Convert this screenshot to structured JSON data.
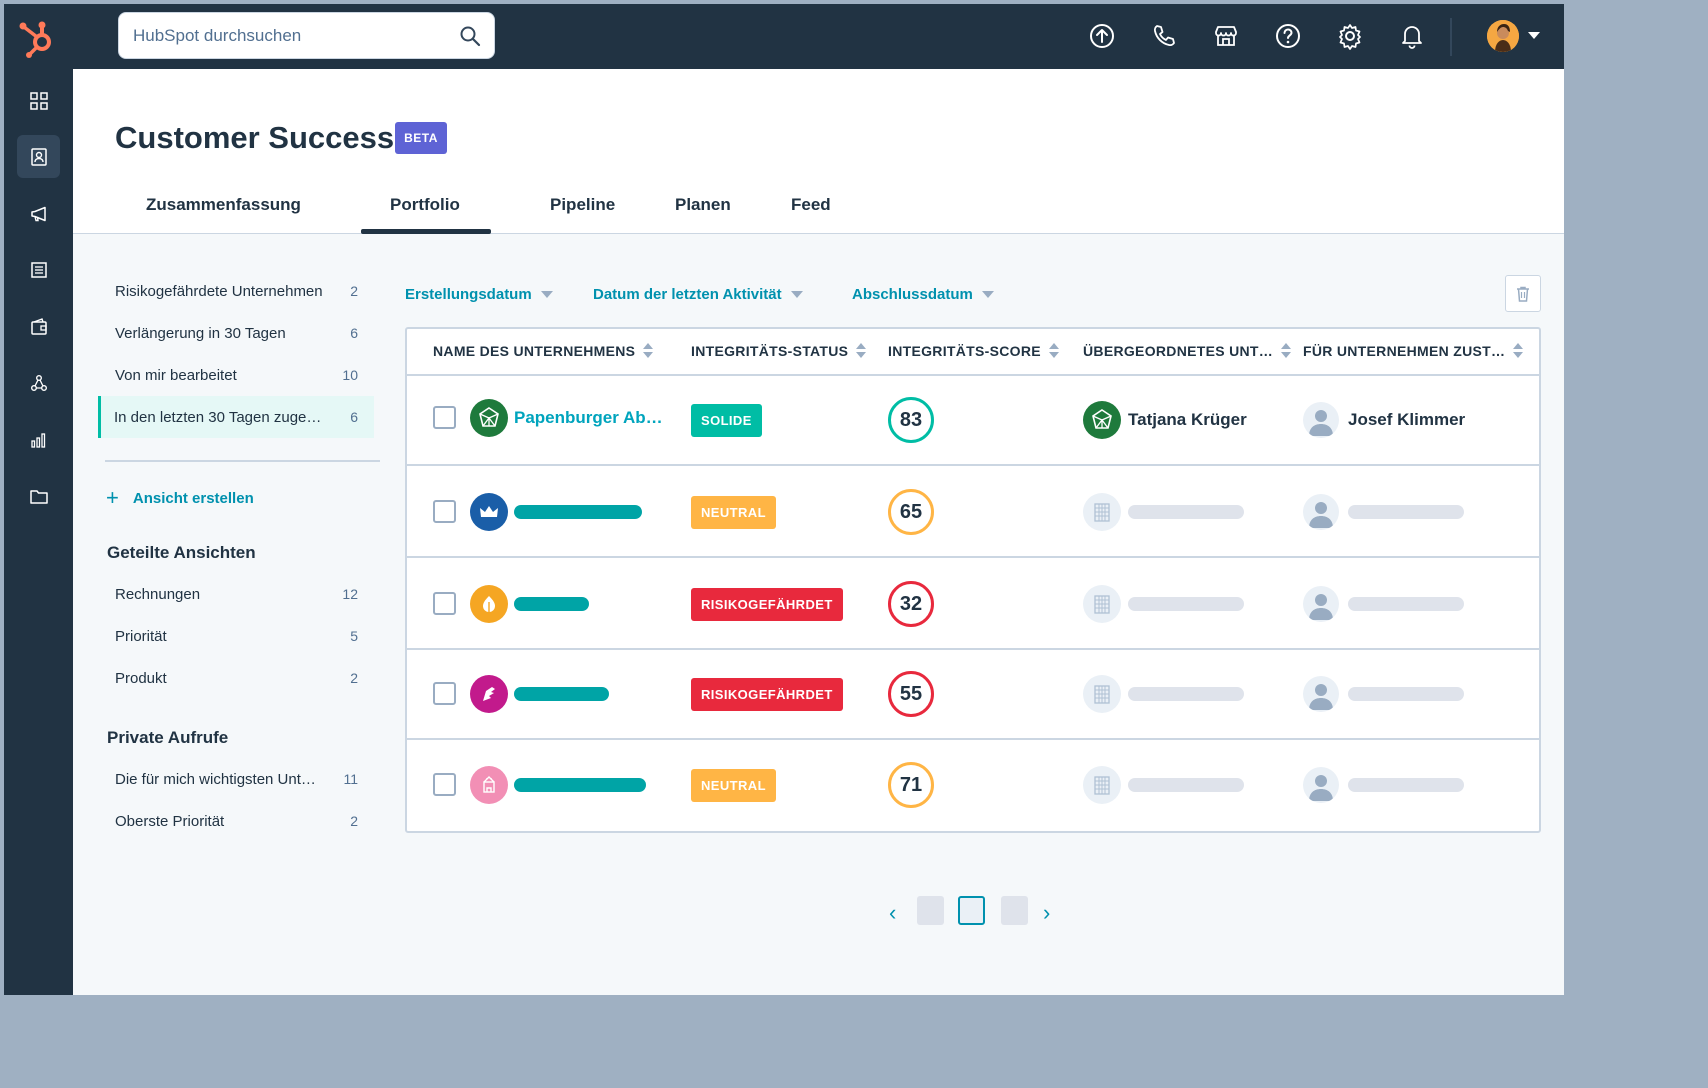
{
  "search": {
    "placeholder": "HubSpot durchsuchen"
  },
  "header": {
    "title": "Customer Success",
    "badge": "BETA"
  },
  "tabs": [
    {
      "label": "Zusammenfassung"
    },
    {
      "label": "Portfolio"
    },
    {
      "label": "Pipeline"
    },
    {
      "label": "Planen"
    },
    {
      "label": "Feed"
    }
  ],
  "active_tab": "Portfolio",
  "sidebar": {
    "views": [
      {
        "label": "Risikogefährdete Unternehmen",
        "count": "2"
      },
      {
        "label": "Verlängerung in 30 Tagen",
        "count": "6"
      },
      {
        "label": "Von mir bearbeitet",
        "count": "10"
      },
      {
        "label": "In den letzten 30 Tagen zuge…",
        "count": "6"
      }
    ],
    "create_view": "Ansicht erstellen",
    "shared_heading": "Geteilte Ansichten",
    "shared": [
      {
        "label": "Rechnungen",
        "count": "12"
      },
      {
        "label": "Priorität",
        "count": "5"
      },
      {
        "label": "Produkt",
        "count": "2"
      }
    ],
    "private_heading": "Private Aufrufe",
    "private": [
      {
        "label": "Die für mich wichtigsten Unt…",
        "count": "11"
      },
      {
        "label": "Oberste Priorität",
        "count": "2"
      }
    ]
  },
  "filters": {
    "created": "Erstellungsdatum",
    "last_activity": "Datum der letzten Aktivität",
    "close_date": "Abschlussdatum"
  },
  "table": {
    "columns": [
      "NAME DES UNTERNEHMENS",
      "INTEGRITÄTS-STATUS",
      "INTEGRITÄTS-SCORE",
      "ÜBERGEORDNETES UNT…",
      "FÜR UNTERNEHMEN ZUST…"
    ],
    "rows": [
      {
        "company": "Papenburger Ab…",
        "status": "SOLIDE",
        "score": "83",
        "parent": "Tatjana Krüger",
        "owner": "Josef Klimmer"
      },
      {
        "company": "",
        "status": "NEUTRAL",
        "score": "65",
        "parent": "",
        "owner": ""
      },
      {
        "company": "",
        "status": "RISIKOGEFÄHRDET",
        "score": "32",
        "parent": "",
        "owner": ""
      },
      {
        "company": "",
        "status": "RISIKOGEFÄHRDET",
        "score": "55",
        "parent": "",
        "owner": ""
      },
      {
        "company": "",
        "status": "NEUTRAL",
        "score": "71",
        "parent": "",
        "owner": ""
      }
    ]
  },
  "pagination": {
    "active_page": 2,
    "pages": 3
  },
  "colors": {
    "nav_bg": "#213343",
    "accent_teal": "#00bda5",
    "link": "#0091ae",
    "solid": "#00bda5",
    "neutral": "#ffb545",
    "risk": "#e8293d",
    "beta": "#5e63d5"
  }
}
